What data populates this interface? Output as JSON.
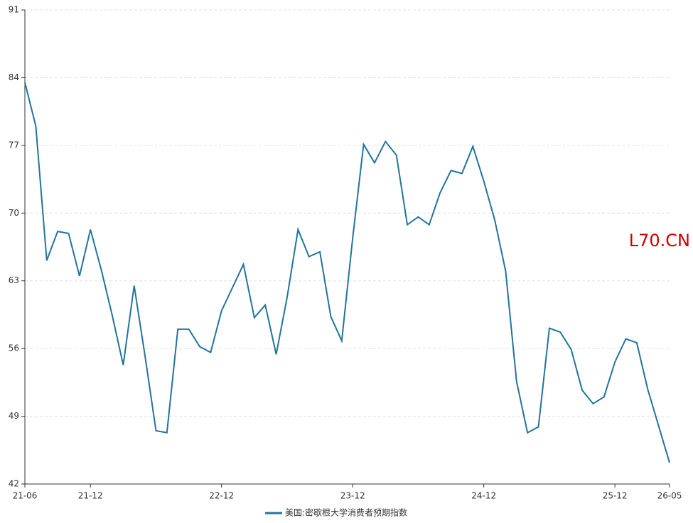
{
  "chart_data": {
    "type": "line",
    "categories": [
      "21-06",
      null,
      null,
      null,
      null,
      null,
      "21-12",
      null,
      null,
      null,
      null,
      null,
      null,
      null,
      null,
      null,
      null,
      null,
      "22-12",
      null,
      null,
      null,
      null,
      null,
      null,
      null,
      null,
      null,
      null,
      null,
      "23-12",
      null,
      null,
      null,
      null,
      null,
      null,
      null,
      null,
      null,
      null,
      null,
      "24-12",
      null,
      null,
      null,
      null,
      null,
      null,
      null,
      null,
      null,
      null,
      null,
      "25-12",
      null,
      null,
      null,
      null,
      "26-05"
    ],
    "series": [
      {
        "name": "美国:密歇根大学消费者预期指数",
        "color": "#21759b",
        "values": [
          83.5,
          79.0,
          65.1,
          68.1,
          67.9,
          63.5,
          68.3,
          64.1,
          59.4,
          54.3,
          62.5,
          55.2,
          47.5,
          47.3,
          58.0,
          58.0,
          56.2,
          55.6,
          59.9,
          62.3,
          64.7,
          59.2,
          60.5,
          55.4,
          61.3,
          68.3,
          65.5,
          66.0,
          59.3,
          56.8,
          67.4,
          77.1,
          75.2,
          77.4,
          76.0,
          68.8,
          69.6,
          68.8,
          72.1,
          74.4,
          74.1,
          76.9,
          73.3,
          69.3,
          64.0,
          52.6,
          47.3,
          47.9,
          58.1,
          57.7,
          55.9,
          51.7,
          50.3,
          51.0,
          54.6,
          57.0,
          56.6,
          51.8,
          48.0,
          44.2
        ]
      }
    ],
    "ylim": [
      42,
      91
    ],
    "yticks": [
      42,
      49,
      56,
      63,
      70,
      77,
      84,
      91
    ],
    "grid": true,
    "annotation": "L70.CN",
    "annotation_color": "#cc0000",
    "legend": "bottom"
  }
}
